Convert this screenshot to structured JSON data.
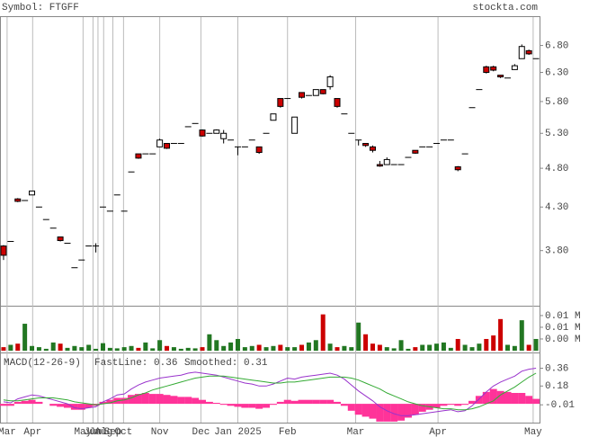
{
  "header": {
    "symbol": "Symbol: FTGFF",
    "site": "stockta.com"
  },
  "chart_data": [
    {
      "type": "candlestick",
      "log": true,
      "grid": true,
      "up_color": "#ffffff",
      "down_color": "#cc0000",
      "xlim": [
        -0.5,
        75.5
      ],
      "ylim": [
        3.25,
        7.37
      ],
      "yticks": [
        {
          "value": 6.8,
          "label": "6.80"
        },
        {
          "value": 6.3,
          "label": "6.30"
        },
        {
          "value": 5.8,
          "label": "5.80"
        },
        {
          "value": 5.3,
          "label": "5.30"
        },
        {
          "value": 4.8,
          "label": "4.80"
        },
        {
          "value": 4.3,
          "label": "4.30"
        },
        {
          "value": 3.8,
          "label": "3.80"
        }
      ],
      "xticks": [
        {
          "value": 0.5,
          "label": "Mar"
        },
        {
          "value": 4.1,
          "label": "Apr"
        },
        {
          "value": 11.2,
          "label": "May"
        },
        {
          "value": 12.6,
          "label": "Jun"
        },
        {
          "value": 13.3,
          "label": "Jul"
        },
        {
          "value": 14.1,
          "label": "Aug"
        },
        {
          "value": 15.4,
          "label": "Sep"
        },
        {
          "value": 16.9,
          "label": "Oct"
        },
        {
          "value": 22,
          "label": "Nov"
        },
        {
          "value": 27.8,
          "label": "Dec"
        },
        {
          "value": 33,
          "label": "Jan 2025"
        },
        {
          "value": 40,
          "label": "Feb"
        },
        {
          "value": 49.6,
          "label": "Mar"
        },
        {
          "value": 61.2,
          "label": "Apr"
        },
        {
          "value": 74.6,
          "label": "May"
        }
      ],
      "ohlc": [
        [
          3.85,
          3.86,
          3.7,
          3.75
        ],
        [
          3.9,
          3.9,
          3.9,
          3.9
        ],
        [
          4.4,
          4.41,
          4.36,
          4.37
        ],
        [
          4.38,
          4.38,
          4.38,
          4.38
        ],
        [
          4.45,
          4.5,
          4.45,
          4.5
        ],
        [
          4.3,
          4.3,
          4.3,
          4.3
        ],
        [
          4.15,
          4.15,
          4.15,
          4.15
        ],
        [
          4.05,
          4.05,
          4.05,
          4.05
        ],
        [
          3.95,
          3.95,
          3.9,
          3.91
        ],
        [
          3.88,
          3.88,
          3.88,
          3.88
        ],
        [
          3.62,
          3.62,
          3.62,
          3.62
        ],
        [
          3.7,
          3.7,
          3.7,
          3.7
        ],
        [
          3.85,
          3.85,
          3.85,
          3.85
        ],
        [
          3.85,
          3.88,
          3.78,
          3.85
        ],
        [
          4.3,
          4.3,
          4.3,
          4.3
        ],
        [
          4.25,
          4.25,
          4.25,
          4.25
        ],
        [
          4.45,
          4.45,
          4.45,
          4.45
        ],
        [
          4.25,
          4.25,
          4.25,
          4.25
        ],
        [
          4.75,
          4.75,
          4.75,
          4.75
        ],
        [
          5.0,
          5.0,
          4.93,
          4.94
        ],
        [
          5.0,
          5.0,
          5.0,
          5.0
        ],
        [
          5.0,
          5.0,
          5.0,
          5.0
        ],
        [
          5.1,
          5.22,
          5.1,
          5.2
        ],
        [
          5.15,
          5.15,
          5.07,
          5.08
        ],
        [
          5.15,
          5.15,
          5.15,
          5.15
        ],
        [
          5.15,
          5.15,
          5.15,
          5.15
        ],
        [
          5.4,
          5.4,
          5.4,
          5.4
        ],
        [
          5.45,
          5.45,
          5.45,
          5.45
        ],
        [
          5.35,
          5.36,
          5.25,
          5.26
        ],
        [
          5.3,
          5.3,
          5.3,
          5.3
        ],
        [
          5.3,
          5.36,
          5.3,
          5.35
        ],
        [
          5.22,
          5.35,
          5.15,
          5.3
        ],
        [
          5.2,
          5.2,
          5.2,
          5.2
        ],
        [
          5.1,
          5.1,
          4.98,
          5.1
        ],
        [
          5.1,
          5.1,
          5.1,
          5.1
        ],
        [
          5.2,
          5.2,
          5.2,
          5.2
        ],
        [
          5.1,
          5.1,
          5.0,
          5.02
        ],
        [
          5.3,
          5.3,
          5.3,
          5.3
        ],
        [
          5.5,
          5.6,
          5.5,
          5.6
        ],
        [
          5.85,
          5.85,
          5.7,
          5.72
        ],
        [
          5.85,
          5.85,
          5.85,
          5.85
        ],
        [
          5.3,
          5.55,
          5.3,
          5.55
        ],
        [
          5.95,
          5.95,
          5.85,
          5.87
        ],
        [
          5.9,
          5.9,
          5.9,
          5.9
        ],
        [
          5.9,
          6.0,
          5.9,
          6.0
        ],
        [
          6.0,
          6.0,
          5.92,
          5.93
        ],
        [
          6.05,
          6.25,
          6.0,
          6.22
        ],
        [
          5.85,
          5.85,
          5.7,
          5.72
        ],
        [
          5.6,
          5.6,
          5.6,
          5.6
        ],
        [
          5.3,
          5.3,
          5.3,
          5.3
        ],
        [
          5.2,
          5.2,
          5.12,
          5.2
        ],
        [
          5.15,
          5.15,
          5.1,
          5.12
        ],
        [
          5.1,
          5.12,
          5.02,
          5.05
        ],
        [
          4.85,
          4.9,
          4.82,
          4.83
        ],
        [
          4.85,
          4.95,
          4.85,
          4.92
        ],
        [
          4.85,
          4.85,
          4.85,
          4.85
        ],
        [
          4.85,
          4.85,
          4.85,
          4.85
        ],
        [
          4.95,
          4.95,
          4.95,
          4.95
        ],
        [
          5.05,
          5.05,
          5.0,
          5.01
        ],
        [
          5.1,
          5.1,
          5.1,
          5.1
        ],
        [
          5.1,
          5.1,
          5.1,
          5.1
        ],
        [
          5.15,
          5.15,
          5.15,
          5.15
        ],
        [
          5.2,
          5.2,
          5.2,
          5.2
        ],
        [
          5.2,
          5.2,
          5.2,
          5.2
        ],
        [
          4.82,
          4.83,
          4.76,
          4.78
        ],
        [
          5.0,
          5.0,
          5.0,
          5.0
        ],
        [
          5.7,
          5.7,
          5.7,
          5.7
        ],
        [
          6.0,
          6.0,
          6.0,
          6.0
        ],
        [
          6.4,
          6.42,
          6.28,
          6.3
        ],
        [
          6.4,
          6.42,
          6.32,
          6.34
        ],
        [
          6.25,
          6.25,
          6.2,
          6.22
        ],
        [
          6.2,
          6.2,
          6.2,
          6.2
        ],
        [
          6.35,
          6.45,
          6.35,
          6.42
        ],
        [
          6.55,
          6.82,
          6.55,
          6.78
        ],
        [
          6.7,
          6.72,
          6.62,
          6.64
        ],
        [
          6.55,
          6.55,
          6.55,
          6.55
        ]
      ]
    },
    {
      "type": "bar",
      "up_color": "#227722",
      "down_color": "#cc0000",
      "ylim": [
        0,
        19200
      ],
      "yticks": [
        {
          "value": 15000,
          "label": "0.01 M"
        },
        {
          "value": 10000,
          "label": "0.01 M"
        },
        {
          "value": 5000,
          "label": "0.00 M"
        }
      ],
      "values": [
        1500,
        2500,
        3000,
        11500,
        2000,
        1500,
        800,
        3500,
        3000,
        1200,
        2000,
        1500,
        2500,
        800,
        3200,
        1200,
        1000,
        1500,
        2000,
        1200,
        3500,
        1000,
        4500,
        2000,
        1500,
        800,
        1200,
        1000,
        1500,
        7000,
        4500,
        2000,
        3500,
        5000,
        1500,
        2000,
        2500,
        1500,
        2000,
        2500,
        1500,
        1500,
        2500,
        3500,
        4500,
        15500,
        3000,
        1500,
        2000,
        1500,
        12000,
        7000,
        3000,
        2500,
        1500,
        1000,
        4500,
        800,
        1500,
        2500,
        2500,
        3000,
        3500,
        1200,
        5000,
        2500,
        1500,
        3000,
        5000,
        6500,
        13500,
        2500,
        2000,
        13000,
        2500,
        5000
      ]
    },
    {
      "type": "macd",
      "title": "MACD(12-26-9)",
      "ylim": [
        -0.19,
        0.51
      ],
      "yticks": [
        0.36,
        0.18,
        -0.01
      ],
      "histogram_color": "#ff3399",
      "histogram": [
        -0.02,
        -0.02,
        0.02,
        0.03,
        0.04,
        0.02,
        0,
        -0.02,
        -0.03,
        -0.04,
        -0.06,
        -0.06,
        -0.04,
        -0.02,
        0.02,
        0.04,
        0.06,
        0.06,
        0.09,
        0.1,
        0.11,
        0.1,
        0.1,
        0.09,
        0.08,
        0.07,
        0.07,
        0.06,
        0.04,
        0.02,
        0.01,
        -0.01,
        -0.02,
        -0.03,
        -0.04,
        -0.04,
        -0.05,
        -0.04,
        -0.01,
        0.02,
        0.04,
        0.03,
        0.04,
        0.04,
        0.04,
        0.04,
        0.04,
        0.02,
        -0.02,
        -0.07,
        -0.11,
        -0.13,
        -0.15,
        -0.18,
        -0.18,
        -0.18,
        -0.17,
        -0.14,
        -0.11,
        -0.08,
        -0.06,
        -0.04,
        -0.02,
        -0.01,
        -0.02,
        -0.01,
        0.03,
        0.08,
        0.12,
        0.15,
        0.13,
        0.12,
        0.11,
        0.11,
        0.08,
        0.05
      ],
      "series": [
        {
          "name": "FastLine: 0.36",
          "color": "#9933cc",
          "values": [
            0.02,
            0.01,
            0.05,
            0.07,
            0.09,
            0.08,
            0.06,
            0.04,
            0.02,
            0,
            -0.04,
            -0.05,
            -0.04,
            -0.03,
            0.02,
            0.05,
            0.09,
            0.1,
            0.15,
            0.19,
            0.22,
            0.24,
            0.26,
            0.27,
            0.28,
            0.29,
            0.31,
            0.32,
            0.31,
            0.3,
            0.29,
            0.27,
            0.25,
            0.23,
            0.21,
            0.2,
            0.18,
            0.18,
            0.2,
            0.23,
            0.26,
            0.25,
            0.27,
            0.28,
            0.29,
            0.3,
            0.31,
            0.29,
            0.25,
            0.19,
            0.13,
            0.08,
            0.03,
            -0.03,
            -0.07,
            -0.1,
            -0.12,
            -0.12,
            -0.11,
            -0.1,
            -0.09,
            -0.08,
            -0.07,
            -0.06,
            -0.08,
            -0.07,
            -0.02,
            0.05,
            0.12,
            0.18,
            0.22,
            0.25,
            0.28,
            0.33,
            0.35,
            0.36
          ]
        },
        {
          "name": "Smoothed: 0.31",
          "color": "#33aa33",
          "values": [
            0.04,
            0.03,
            0.03,
            0.04,
            0.05,
            0.06,
            0.06,
            0.06,
            0.05,
            0.04,
            0.02,
            0.01,
            0,
            -0.01,
            0,
            0.01,
            0.03,
            0.04,
            0.06,
            0.09,
            0.11,
            0.14,
            0.16,
            0.18,
            0.2,
            0.22,
            0.24,
            0.26,
            0.27,
            0.28,
            0.28,
            0.28,
            0.27,
            0.26,
            0.25,
            0.24,
            0.23,
            0.22,
            0.21,
            0.21,
            0.22,
            0.22,
            0.23,
            0.24,
            0.25,
            0.26,
            0.27,
            0.27,
            0.27,
            0.26,
            0.24,
            0.21,
            0.18,
            0.15,
            0.11,
            0.08,
            0.05,
            0.02,
            0,
            -0.02,
            -0.03,
            -0.04,
            -0.05,
            -0.05,
            -0.06,
            -0.06,
            -0.05,
            -0.03,
            0,
            0.03,
            0.09,
            0.13,
            0.17,
            0.22,
            0.27,
            0.31
          ]
        }
      ]
    }
  ]
}
